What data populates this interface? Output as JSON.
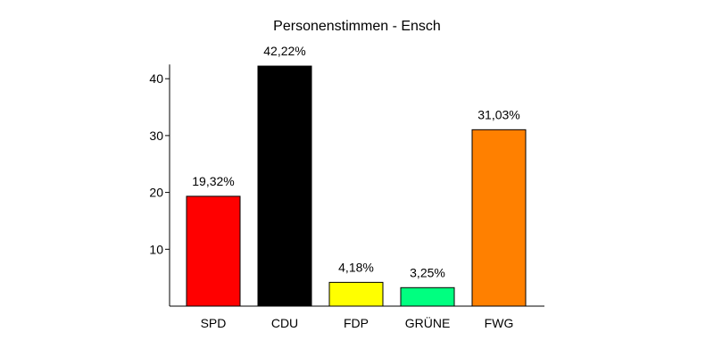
{
  "chart_data": {
    "type": "bar",
    "title": "Personenstimmen - Ensch",
    "xlabel": "",
    "ylabel": "",
    "categories": [
      "SPD",
      "CDU",
      "FDP",
      "GRÜNE",
      "FWG"
    ],
    "values": [
      19.32,
      42.22,
      4.18,
      3.25,
      31.03
    ],
    "data_labels": [
      "19,32%",
      "42,22%",
      "4,18%",
      "3,25%",
      "31,03%"
    ],
    "colors": [
      "#ff0000",
      "#000000",
      "#ffff00",
      "#00ff80",
      "#ff8000"
    ],
    "yticks": [
      10,
      20,
      30,
      40
    ],
    "ylim": [
      0,
      42.5
    ],
    "grid": false,
    "legend": "none"
  }
}
